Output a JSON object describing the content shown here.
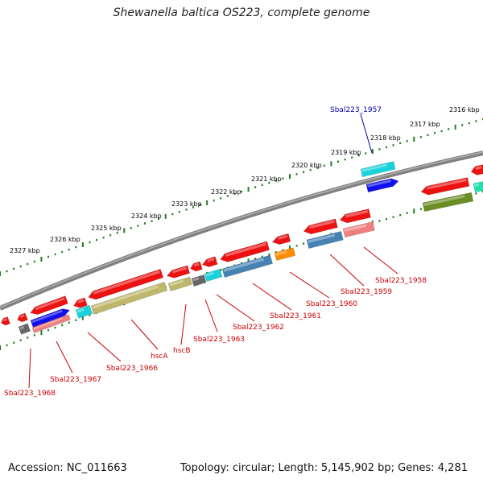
{
  "title": "Shewanella baltica OS223, complete genome",
  "footer": {
    "accession": "Accession: NC_011663",
    "summary": "Topology: circular; Length: 5,145,902 bp; Genes: 4,281"
  },
  "colors": {
    "backbone": "#808080",
    "tick": "#1e7d1e",
    "label_red": "#cc0000",
    "label_blue": "#0000aa",
    "red": "#ee1111",
    "pink": "#f08080",
    "khaki": "#bdb76b",
    "steelblue": "#4682b4",
    "orange": "#ff8c00",
    "cyan": "#19d3dc",
    "gray": "#666666",
    "blue": "#1010ee",
    "olive": "#6b8e23",
    "teal": "#20e0b0"
  },
  "scale_labels": [
    {
      "text": "2327 kbp"
    },
    {
      "text": "2326 kbp"
    },
    {
      "text": "2325 kbp"
    },
    {
      "text": "2324 kbp"
    },
    {
      "text": "2323 kbp"
    },
    {
      "text": "2322 kbp"
    },
    {
      "text": "2321 kbp"
    },
    {
      "text": "2320 kbp"
    },
    {
      "text": "2319 kbp"
    },
    {
      "text": "2318 kbp"
    },
    {
      "text": "2317 kbp"
    },
    {
      "text": "2316 kbp"
    }
  ],
  "gene_labels": [
    {
      "text": "Sbal223_1957",
      "color": "blue"
    },
    {
      "text": "Sbal223_1958",
      "color": "red"
    },
    {
      "text": "Sbal223_1959",
      "color": "red"
    },
    {
      "text": "Sbal223_1960",
      "color": "red"
    },
    {
      "text": "Sbal223_1961",
      "color": "red"
    },
    {
      "text": "Sbal223_1962",
      "color": "red"
    },
    {
      "text": "Sbal223_1963",
      "color": "red"
    },
    {
      "text": "hscB",
      "color": "red"
    },
    {
      "text": "hscA",
      "color": "red"
    },
    {
      "text": "Sbal223_1966",
      "color": "red"
    },
    {
      "text": "Sbal223_1967",
      "color": "red"
    },
    {
      "text": "Sbal223_1968",
      "color": "red"
    }
  ]
}
